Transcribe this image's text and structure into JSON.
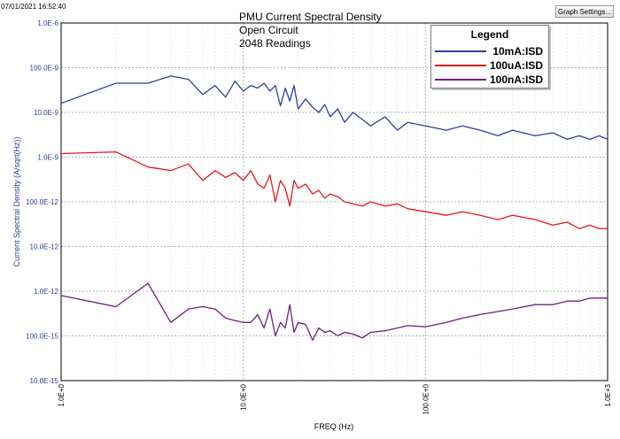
{
  "header": {
    "timestamp": "07/01/2021 16:52:40",
    "settings_button": "Graph Settings..."
  },
  "title_lines": [
    "PMU Current Spectral Density",
    "Open Circuit",
    "2048 Readings"
  ],
  "legend": {
    "title": "Legend",
    "items": [
      {
        "label": "10mA:ISD",
        "color": "#2e3f9e"
      },
      {
        "label": "100uA:ISD",
        "color": "#e8171c"
      },
      {
        "label": "100nA:ISD",
        "color": "#6e1f7e"
      }
    ]
  },
  "chart_data": {
    "type": "line",
    "title": "PMU Current Spectral Density",
    "xlabel": "FREQ (Hz)",
    "ylabel": "Current Spectral Density (A/sqrt(Hz))",
    "x_scale": "log",
    "y_scale": "log",
    "xlim": [
      1,
      1000
    ],
    "ylim": [
      1e-14,
      1e-06
    ],
    "grid": true,
    "legend_position": "top-right",
    "x_ticks": [
      {
        "value": 1,
        "label": "1.0E+0"
      },
      {
        "value": 10,
        "label": "10.0E+0"
      },
      {
        "value": 100,
        "label": "100.0E+0"
      },
      {
        "value": 1000,
        "label": "1.0E+3"
      }
    ],
    "y_ticks": [
      {
        "value": 1e-06,
        "label": "1.0E-6"
      },
      {
        "value": 1e-07,
        "label": "100.0E-9"
      },
      {
        "value": 1e-08,
        "label": "10.0E-9"
      },
      {
        "value": 1e-09,
        "label": "1.0E-9"
      },
      {
        "value": 1e-10,
        "label": "100.0E-12"
      },
      {
        "value": 1e-11,
        "label": "10.0E-12"
      },
      {
        "value": 1e-12,
        "label": "1.0E-12"
      },
      {
        "value": 1e-13,
        "label": "100.0E-15"
      },
      {
        "value": 1e-14,
        "label": "10.0E-15"
      }
    ],
    "series": [
      {
        "name": "10mA:ISD",
        "color": "#2e3f9e",
        "x": [
          1,
          2,
          3,
          4,
          5,
          6,
          7,
          8,
          9,
          10,
          11,
          12,
          13,
          14,
          15,
          16,
          17,
          18,
          19,
          20,
          22,
          24,
          26,
          28,
          30,
          33,
          36,
          40,
          45,
          50,
          60,
          70,
          80,
          100,
          130,
          160,
          200,
          250,
          300,
          400,
          500,
          600,
          700,
          800,
          900,
          1000
        ],
        "y": [
          1.6e-08,
          4.5e-08,
          4.5e-08,
          6.5e-08,
          5.5e-08,
          2.5e-08,
          4e-08,
          2.2e-08,
          5e-08,
          3e-08,
          4e-08,
          3.5e-08,
          4.5e-08,
          3e-08,
          4e-08,
          1.4e-08,
          3.5e-08,
          1.8e-08,
          4e-08,
          1.2e-08,
          2e-08,
          1.3e-08,
          1e-08,
          1.5e-08,
          8e-09,
          1.2e-08,
          6e-09,
          1e-08,
          7e-09,
          5e-09,
          8e-09,
          4e-09,
          6e-09,
          5e-09,
          4e-09,
          5e-09,
          4e-09,
          3e-09,
          4e-09,
          3e-09,
          3.5e-09,
          2.5e-09,
          3e-09,
          2.5e-09,
          3e-09,
          2.5e-09
        ]
      },
      {
        "name": "100uA:ISD",
        "color": "#e8171c",
        "x": [
          1,
          2,
          3,
          4,
          5,
          6,
          7,
          8,
          9,
          10,
          11,
          12,
          13,
          14,
          15,
          16,
          17,
          18,
          19,
          20,
          22,
          24,
          26,
          28,
          30,
          33,
          36,
          40,
          45,
          50,
          60,
          70,
          80,
          100,
          130,
          160,
          200,
          250,
          300,
          400,
          500,
          600,
          700,
          800,
          900,
          1000
        ],
        "y": [
          1.2e-09,
          1.3e-09,
          6e-10,
          5e-10,
          7e-10,
          3e-10,
          5e-10,
          3.5e-10,
          4.5e-10,
          3e-10,
          5e-10,
          2.5e-10,
          2e-10,
          4e-10,
          1e-10,
          3e-10,
          2e-10,
          8e-11,
          3e-10,
          2e-10,
          2.5e-10,
          1.5e-10,
          1.8e-10,
          1.2e-10,
          1.5e-10,
          1.3e-10,
          1e-10,
          9e-11,
          8e-11,
          1e-10,
          8e-11,
          9e-11,
          7e-11,
          6e-11,
          5e-11,
          6e-11,
          5e-11,
          4e-11,
          5e-11,
          4e-11,
          3e-11,
          3.5e-11,
          2.5e-11,
          3e-11,
          2.5e-11,
          2.5e-11
        ]
      },
      {
        "name": "100nA:ISD",
        "color": "#6e1f7e",
        "x": [
          1,
          2,
          3,
          4,
          5,
          6,
          7,
          8,
          9,
          10,
          11,
          12,
          13,
          14,
          15,
          16,
          17,
          18,
          19,
          20,
          22,
          24,
          26,
          28,
          30,
          33,
          36,
          40,
          45,
          50,
          60,
          70,
          80,
          100,
          130,
          160,
          200,
          250,
          300,
          400,
          500,
          600,
          700,
          800,
          900,
          1000
        ],
        "y": [
          8e-13,
          4.5e-13,
          1.5e-12,
          2e-13,
          4e-13,
          4.5e-13,
          4e-13,
          2.5e-13,
          2.2e-13,
          2e-13,
          2e-13,
          3e-13,
          1.5e-13,
          4e-13,
          1e-13,
          2e-13,
          1.5e-13,
          5e-13,
          1.2e-13,
          2e-13,
          1.8e-13,
          8e-14,
          1.5e-13,
          1.2e-13,
          1.3e-13,
          1e-13,
          1.2e-13,
          1.1e-13,
          9e-14,
          1.2e-13,
          1.3e-13,
          1.5e-13,
          1.7e-13,
          1.6e-13,
          2e-13,
          2.5e-13,
          3e-13,
          3.5e-13,
          4e-13,
          5e-13,
          5e-13,
          6e-13,
          6e-13,
          7e-13,
          7e-13,
          7e-13
        ]
      }
    ]
  }
}
